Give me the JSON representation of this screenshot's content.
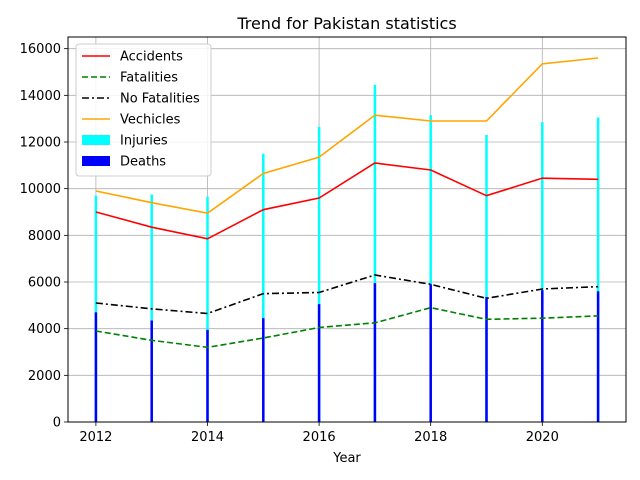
{
  "chart_data": {
    "type": "line",
    "title": "Trend for Pakistan statistics",
    "xlabel": "Year",
    "ylabel": "",
    "xlim": [
      2011.5,
      2021.5
    ],
    "ylim": [
      0,
      16500
    ],
    "x_ticks": [
      2012,
      2014,
      2016,
      2018,
      2020
    ],
    "y_ticks": [
      0,
      2000,
      4000,
      6000,
      8000,
      10000,
      12000,
      14000,
      16000
    ],
    "grid": true,
    "legend_position": "top-left",
    "x": [
      2012,
      2013,
      2014,
      2015,
      2016,
      2017,
      2018,
      2019,
      2020,
      2021
    ],
    "bars": [
      {
        "name": "Injuries",
        "color": "#00ffff",
        "values": [
          9700,
          9750,
          9650,
          11500,
          12650,
          14450,
          13150,
          12300,
          12850,
          13050
        ]
      },
      {
        "name": "Deaths",
        "color": "#0000ff",
        "values": [
          4700,
          4350,
          3950,
          4450,
          5050,
          5950,
          5900,
          5350,
          5650,
          5600
        ]
      }
    ],
    "series": [
      {
        "name": "Accidents",
        "color": "#ff0000",
        "style": "solid",
        "values": [
          9000,
          8350,
          7850,
          9100,
          9600,
          11100,
          10800,
          9700,
          10450,
          10400
        ]
      },
      {
        "name": "Fatalities",
        "color": "#008000",
        "style": "dashed",
        "values": [
          3900,
          3500,
          3200,
          3600,
          4050,
          4250,
          4900,
          4400,
          4450,
          4550
        ]
      },
      {
        "name": "No Fatalities",
        "color": "#000000",
        "style": "dashdot",
        "values": [
          5100,
          4850,
          4650,
          5500,
          5550,
          6300,
          5900,
          5300,
          5700,
          5800
        ]
      },
      {
        "name": "Vechicles",
        "color": "#ffa500",
        "style": "solid",
        "values": [
          9900,
          9400,
          8950,
          10650,
          11350,
          13150,
          12900,
          12900,
          15350,
          15600
        ]
      }
    ]
  }
}
